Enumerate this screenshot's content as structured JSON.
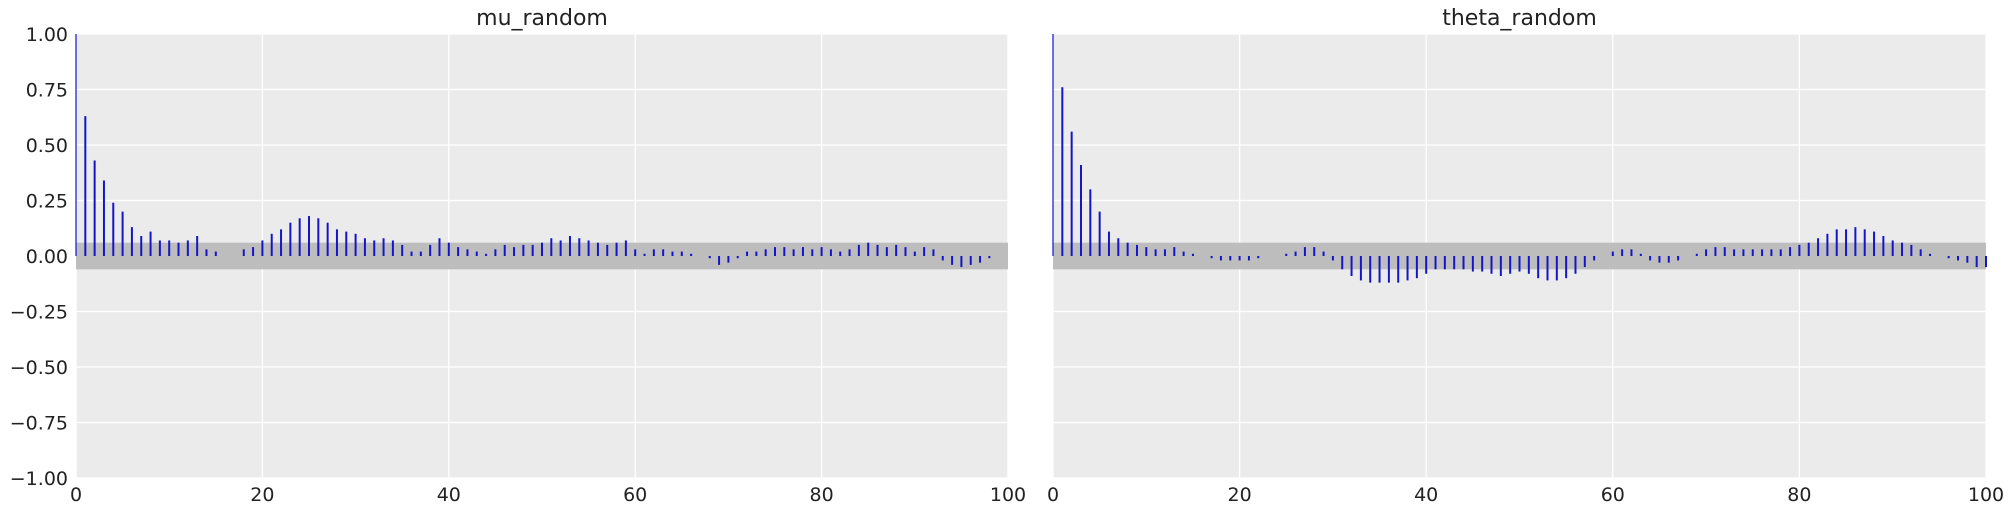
{
  "chart_data": [
    {
      "type": "bar",
      "title": "mu_random",
      "xlabel": "",
      "ylabel": "",
      "xlim": [
        0,
        100
      ],
      "ylim": [
        -1.0,
        1.0
      ],
      "xticks": [
        "0",
        "20",
        "40",
        "60",
        "80",
        "100"
      ],
      "yticks": [
        "1.00",
        "0.75",
        "0.50",
        "0.25",
        "0.00",
        "−0.25",
        "−0.50",
        "−0.75",
        "−1.00"
      ],
      "grid": true,
      "confidence_band": [
        -0.06,
        0.06
      ],
      "series": [
        {
          "values": [
            1.0,
            0.63,
            0.43,
            0.34,
            0.24,
            0.2,
            0.13,
            0.09,
            0.11,
            0.07,
            0.07,
            0.06,
            0.07,
            0.09,
            0.03,
            0.02,
            0.0,
            0.0,
            0.03,
            0.04,
            0.07,
            0.1,
            0.12,
            0.15,
            0.17,
            0.18,
            0.17,
            0.15,
            0.12,
            0.11,
            0.1,
            0.08,
            0.07,
            0.08,
            0.07,
            0.05,
            0.02,
            0.02,
            0.05,
            0.08,
            0.06,
            0.04,
            0.03,
            0.02,
            0.01,
            0.03,
            0.05,
            0.04,
            0.05,
            0.05,
            0.06,
            0.08,
            0.07,
            0.09,
            0.08,
            0.07,
            0.06,
            0.05,
            0.06,
            0.07,
            0.03,
            0.01,
            0.03,
            0.03,
            0.02,
            0.02,
            0.01,
            0.0,
            -0.01,
            -0.04,
            -0.03,
            -0.01,
            0.02,
            0.02,
            0.03,
            0.04,
            0.04,
            0.03,
            0.04,
            0.03,
            0.04,
            0.03,
            0.02,
            0.03,
            0.05,
            0.06,
            0.05,
            0.04,
            0.05,
            0.04,
            0.02,
            0.04,
            0.03,
            -0.02,
            -0.04,
            -0.05,
            -0.04,
            -0.03,
            -0.01,
            0.0,
            0.0
          ]
        }
      ]
    },
    {
      "type": "bar",
      "title": "theta_random",
      "xlabel": "",
      "ylabel": "",
      "xlim": [
        0,
        100
      ],
      "ylim": [
        -1.0,
        1.0
      ],
      "xticks": [
        "0",
        "20",
        "40",
        "60",
        "80",
        "100"
      ],
      "yticks": [],
      "grid": true,
      "confidence_band": [
        -0.06,
        0.06
      ],
      "series": [
        {
          "values": [
            1.0,
            0.76,
            0.56,
            0.41,
            0.3,
            0.2,
            0.11,
            0.08,
            0.06,
            0.05,
            0.04,
            0.03,
            0.03,
            0.04,
            0.02,
            0.01,
            0.0,
            -0.01,
            -0.02,
            -0.02,
            -0.02,
            -0.02,
            -0.01,
            0.0,
            0.0,
            0.01,
            0.02,
            0.04,
            0.04,
            0.02,
            -0.02,
            -0.06,
            -0.09,
            -0.11,
            -0.12,
            -0.12,
            -0.12,
            -0.12,
            -0.11,
            -0.1,
            -0.08,
            -0.06,
            -0.06,
            -0.06,
            -0.06,
            -0.07,
            -0.07,
            -0.08,
            -0.09,
            -0.08,
            -0.07,
            -0.08,
            -0.1,
            -0.11,
            -0.11,
            -0.1,
            -0.08,
            -0.05,
            -0.02,
            0.0,
            0.02,
            0.03,
            0.03,
            0.01,
            -0.02,
            -0.03,
            -0.03,
            -0.02,
            0.0,
            0.01,
            0.03,
            0.04,
            0.04,
            0.03,
            0.03,
            0.03,
            0.03,
            0.03,
            0.03,
            0.04,
            0.05,
            0.06,
            0.08,
            0.1,
            0.12,
            0.12,
            0.13,
            0.12,
            0.11,
            0.09,
            0.07,
            0.06,
            0.05,
            0.03,
            0.01,
            0.0,
            -0.01,
            -0.02,
            -0.03,
            -0.05,
            -0.05
          ]
        }
      ]
    }
  ]
}
